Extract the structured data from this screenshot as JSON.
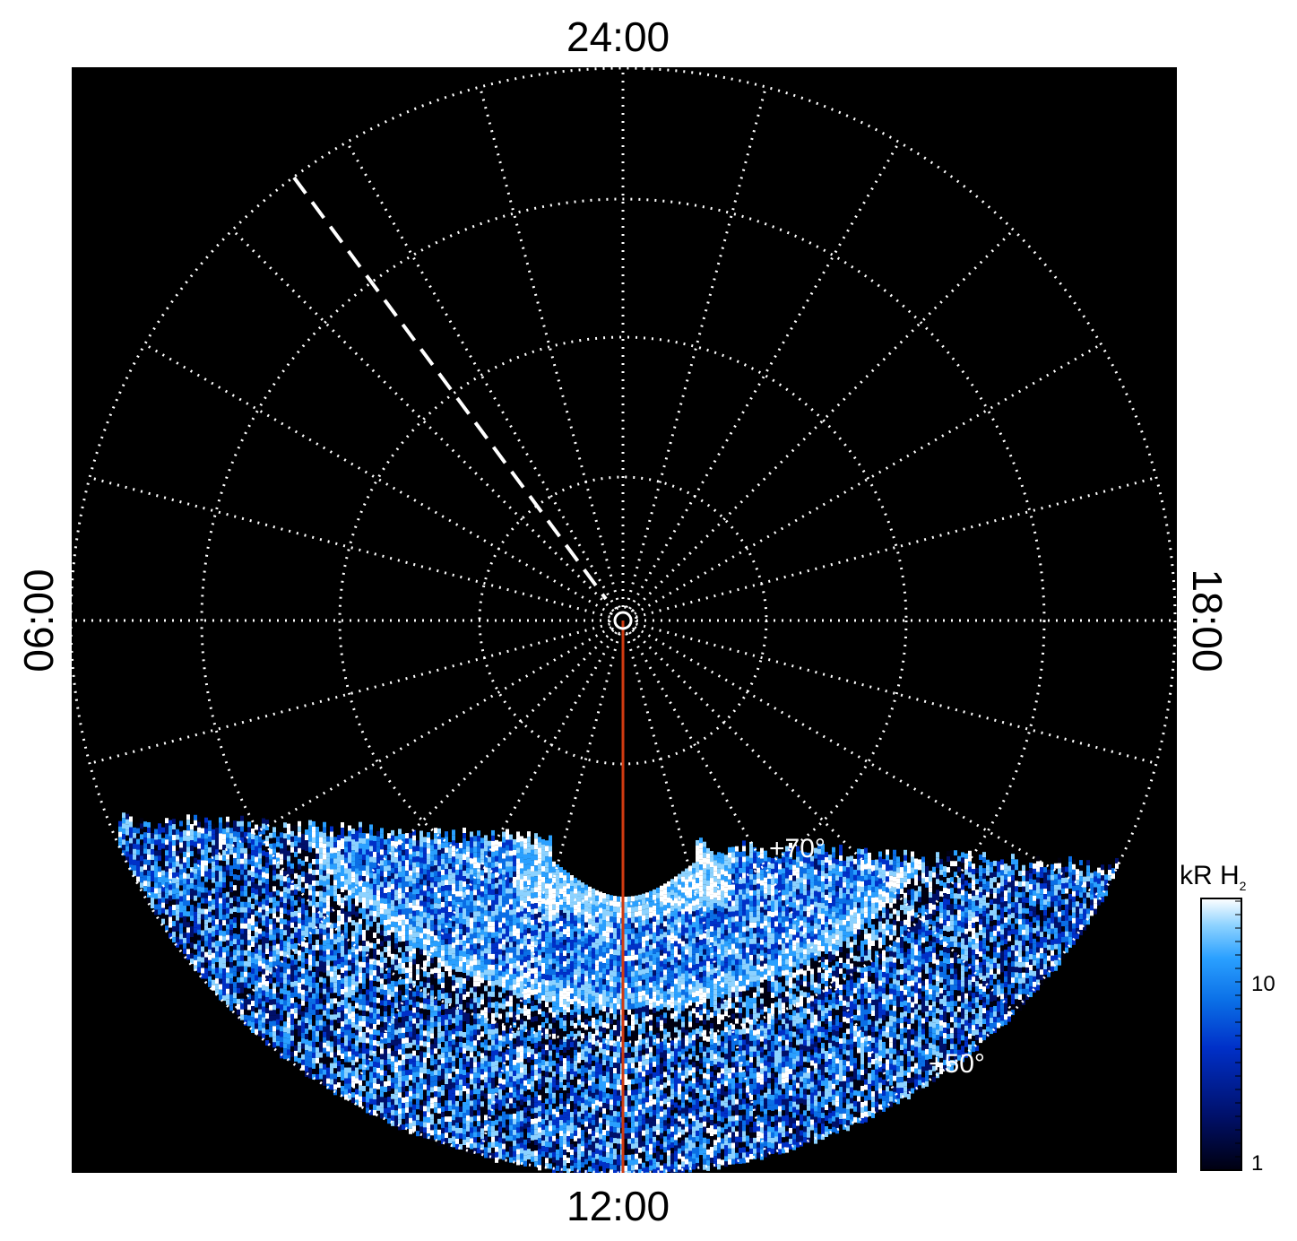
{
  "labels": {
    "top": "24:00",
    "bottom": "12:00",
    "left": "06:00",
    "right": "18:00",
    "lat70": "+70°",
    "lat50": "+50°"
  },
  "colorbar": {
    "title": "kR H",
    "title_sub": "2",
    "ticks": [
      "10",
      "1"
    ]
  },
  "colors": {
    "background": "#000000",
    "grid": "#ffffff",
    "noon_line": "#d03a10",
    "colormap": [
      "#000010",
      "#00106a",
      "#0030c8",
      "#0a6ee6",
      "#2aa0ff",
      "#8cd2ff",
      "#ffffff"
    ]
  }
}
